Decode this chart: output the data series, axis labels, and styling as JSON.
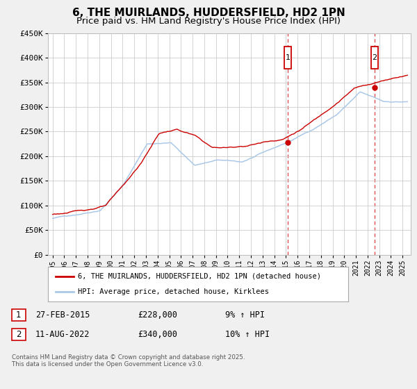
{
  "title": "6, THE MUIRLANDS, HUDDERSFIELD, HD2 1PN",
  "subtitle": "Price paid vs. HM Land Registry's House Price Index (HPI)",
  "title_fontsize": 11,
  "subtitle_fontsize": 9.5,
  "legend_line1": "6, THE MUIRLANDS, HUDDERSFIELD, HD2 1PN (detached house)",
  "legend_line2": "HPI: Average price, detached house, Kirklees",
  "red_color": "#cc0000",
  "blue_color": "#aac8e8",
  "marker1_date": 2015.16,
  "marker1_value": 228000,
  "marker1_label": "1",
  "marker1_text": "27-FEB-2015",
  "marker1_price": "£228,000",
  "marker1_hpi": "9% ↑ HPI",
  "marker2_date": 2022.61,
  "marker2_value": 340000,
  "marker2_label": "2",
  "marker2_text": "11-AUG-2022",
  "marker2_price": "£340,000",
  "marker2_hpi": "10% ↑ HPI",
  "footer": "Contains HM Land Registry data © Crown copyright and database right 2025.\nThis data is licensed under the Open Government Licence v3.0.",
  "ylim": [
    0,
    450000
  ],
  "yticks": [
    0,
    50000,
    100000,
    150000,
    200000,
    250000,
    300000,
    350000,
    400000,
    450000
  ],
  "ytick_labels": [
    "£0",
    "£50K",
    "£100K",
    "£150K",
    "£200K",
    "£250K",
    "£300K",
    "£350K",
    "£400K",
    "£450K"
  ],
  "background_color": "#f0f0f0",
  "plot_bg": "#ffffff",
  "xstart": 1995,
  "xend": 2025
}
